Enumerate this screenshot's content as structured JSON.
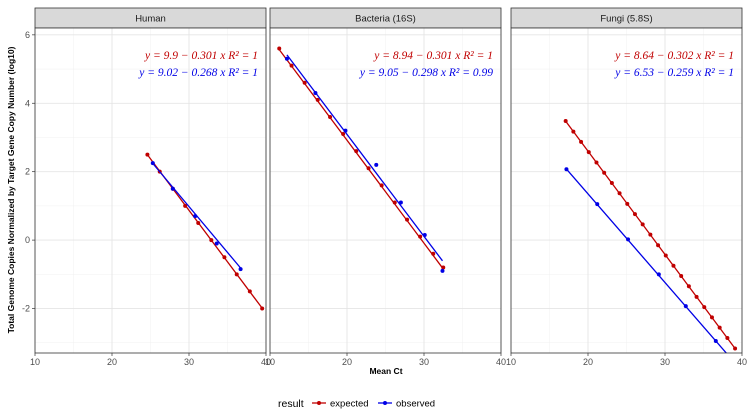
{
  "chart_data": {
    "type": "scatter",
    "xlabel": "Mean Ct",
    "ylabel": "Total Genome Copies Normalized by Target Gene Copy Number (log10)",
    "xlim": [
      10,
      40
    ],
    "ylim": [
      -3.3,
      6.2
    ],
    "x_ticks": [
      10,
      20,
      30,
      40
    ],
    "y_ticks": [
      -2,
      0,
      2,
      4,
      6
    ],
    "grid": true,
    "legend": {
      "title": "result",
      "position": "bottom",
      "entries": [
        {
          "name": "expected",
          "color": "#c00000"
        },
        {
          "name": "observed",
          "color": "#0000e6"
        }
      ]
    },
    "panels": [
      {
        "title": "Human",
        "series": [
          {
            "name": "expected",
            "color": "#c00000",
            "fit": {
              "intercept": 9.9,
              "slope": -0.301,
              "r2": 1
            },
            "equation": "y = 9.9 − 0.301 x   R² = 1",
            "x": [
              24.6,
              26.2,
              27.9,
              29.5,
              31.2,
              32.9,
              34.6,
              36.2,
              37.9,
              39.5
            ],
            "y": [
              2.5,
              2.0,
              1.5,
              1.0,
              0.5,
              0.0,
              -0.5,
              -1.0,
              -1.5,
              -2.0
            ]
          },
          {
            "name": "observed",
            "color": "#0000e6",
            "fit": {
              "intercept": 9.02,
              "slope": -0.268,
              "r2": 1
            },
            "equation": "y = 9.02 − 0.268 x   R² = 1",
            "x": [
              25.3,
              27.9,
              30.8,
              33.6,
              36.7
            ],
            "y": [
              2.25,
              1.5,
              0.7,
              -0.1,
              -0.85
            ]
          }
        ]
      },
      {
        "title": "Bacteria (16S)",
        "series": [
          {
            "name": "expected",
            "color": "#c00000",
            "fit": {
              "intercept": 8.94,
              "slope": -0.301,
              "r2": 1
            },
            "equation": "y = 8.94 − 0.301 x   R² = 1",
            "x": [
              11.2,
              12.8,
              14.5,
              16.2,
              17.8,
              19.5,
              21.2,
              22.8,
              24.5,
              26.2,
              27.8,
              29.5,
              31.2,
              32.5
            ],
            "y": [
              5.6,
              5.1,
              4.6,
              4.1,
              3.6,
              3.1,
              2.6,
              2.1,
              1.6,
              1.1,
              0.6,
              0.1,
              -0.4,
              -0.8
            ]
          },
          {
            "name": "observed",
            "color": "#0000e6",
            "fit": {
              "intercept": 9.05,
              "slope": -0.298,
              "r2": 0.99
            },
            "equation": "y = 9.05 − 0.298 x   R² = 0.99",
            "x": [
              12.2,
              15.9,
              19.8,
              23.8,
              27.0,
              30.1,
              32.4
            ],
            "y": [
              5.3,
              4.3,
              3.2,
              2.2,
              1.1,
              0.15,
              -0.9
            ]
          }
        ]
      },
      {
        "title": "Fungi (5.8S)",
        "series": [
          {
            "name": "expected",
            "color": "#c00000",
            "fit": {
              "intercept": 8.64,
              "slope": -0.302,
              "r2": 1
            },
            "equation": "y = 8.64 − 0.302 x   R² = 1",
            "x": [
              17.1,
              18.1,
              19.1,
              20.1,
              21.1,
              22.1,
              23.1,
              24.1,
              25.1,
              26.1,
              27.1,
              28.1,
              29.1,
              30.1,
              31.1,
              32.1,
              33.1,
              34.1,
              35.1,
              36.1,
              37.1,
              38.1,
              39.1
            ],
            "y": [
              3.48,
              3.17,
              2.87,
              2.57,
              2.27,
              1.97,
              1.67,
              1.37,
              1.06,
              0.76,
              0.46,
              0.16,
              -0.15,
              -0.45,
              -0.75,
              -1.05,
              -1.35,
              -1.66,
              -1.96,
              -2.26,
              -2.56,
              -2.86,
              -3.17
            ]
          },
          {
            "name": "observed",
            "color": "#0000e6",
            "fit": {
              "intercept": 6.53,
              "slope": -0.259,
              "r2": 1
            },
            "equation": "y = 6.53 − 0.259 x   R² = 1",
            "x": [
              17.2,
              21.2,
              25.2,
              29.2,
              32.7,
              36.6,
              39.6
            ],
            "y": [
              2.07,
              1.05,
              0.02,
              -1.0,
              -1.93,
              -2.95,
              -3.7
            ]
          }
        ]
      }
    ]
  }
}
